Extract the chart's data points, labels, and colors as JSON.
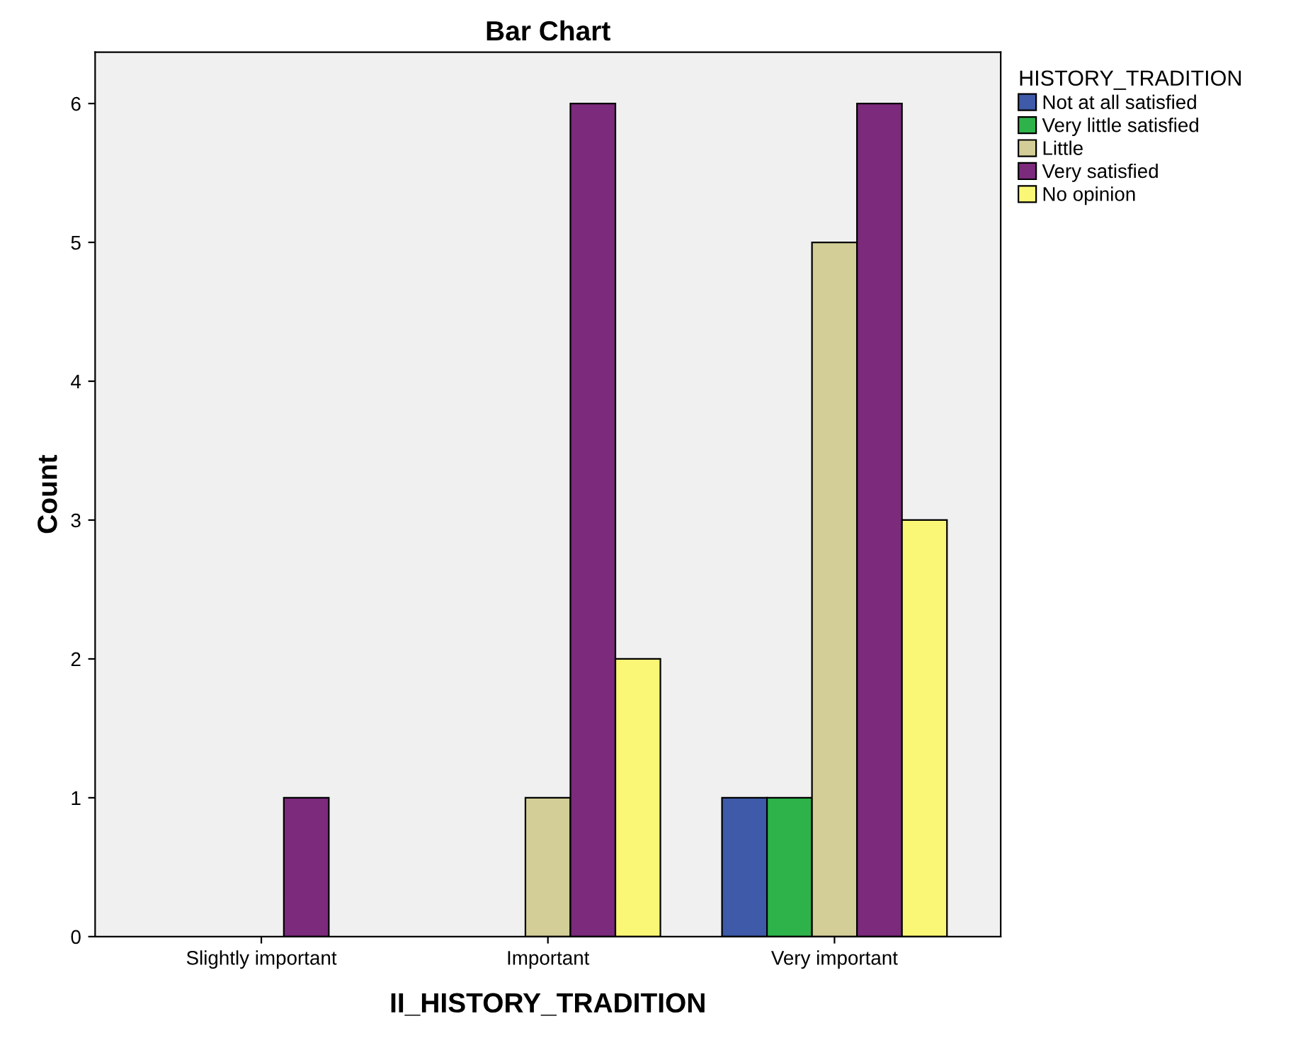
{
  "chart_data": {
    "type": "bar",
    "title": "Bar Chart",
    "xlabel": "II_HISTORY_TRADITION",
    "ylabel": "Count",
    "legend_title": "HISTORY_TRADITION",
    "categories": [
      "Slightly important",
      "Important",
      "Very important"
    ],
    "series": [
      {
        "name": "Not at all satisfied",
        "color": "#3e5aa8",
        "values": [
          null,
          null,
          1
        ]
      },
      {
        "name": "Very little satisfied",
        "color": "#2db34a",
        "values": [
          null,
          null,
          1
        ]
      },
      {
        "name": "Little",
        "color": "#d3ce97",
        "values": [
          null,
          1,
          5
        ]
      },
      {
        "name": "Very satisfied",
        "color": "#7b2a7c",
        "values": [
          1,
          6,
          6
        ]
      },
      {
        "name": "No opinion",
        "color": "#fbf776",
        "values": [
          null,
          2,
          3
        ]
      }
    ],
    "ylim": [
      0,
      6.37
    ],
    "yticks": [
      0,
      1,
      2,
      3,
      4,
      5,
      6
    ],
    "grid": false,
    "legend": "right"
  }
}
